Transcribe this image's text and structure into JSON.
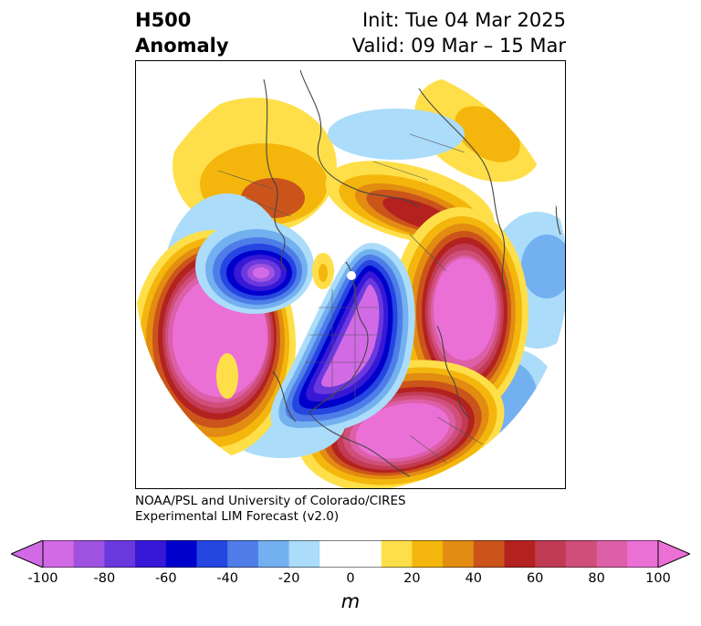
{
  "header": {
    "title_line1": "H500",
    "title_line2": "Anomaly",
    "init_text": "Init: Tue 04 Mar 2025",
    "valid_text": "Valid: 09 Mar – 15 Mar"
  },
  "credit": {
    "line1": "NOAA/PSL and University of Colorado/CIRES",
    "line2": "Experimental LIM Forecast (v2.0)"
  },
  "colorbar": {
    "unit": "m",
    "ticks": [
      "-100",
      "-80",
      "-60",
      "-40",
      "-20",
      "0",
      "20",
      "40",
      "60",
      "80",
      "100"
    ],
    "colors": [
      "#d26ae6",
      "#9f52e0",
      "#6a39de",
      "#3718d6",
      "#0000cc",
      "#2546e0",
      "#4f7de8",
      "#73b0f0",
      "#abdcfa",
      "#ffffff",
      "#ffffff",
      "#fedf49",
      "#f4b60c",
      "#e28c12",
      "#cb541b",
      "#b3221f",
      "#c23b54",
      "#d04f7a",
      "#dd5fa8",
      "#eb70d6"
    ]
  },
  "map": {
    "projection": "polar stereographic (Northern Hemisphere)",
    "variable": "500 hPa geopotential height anomaly"
  }
}
